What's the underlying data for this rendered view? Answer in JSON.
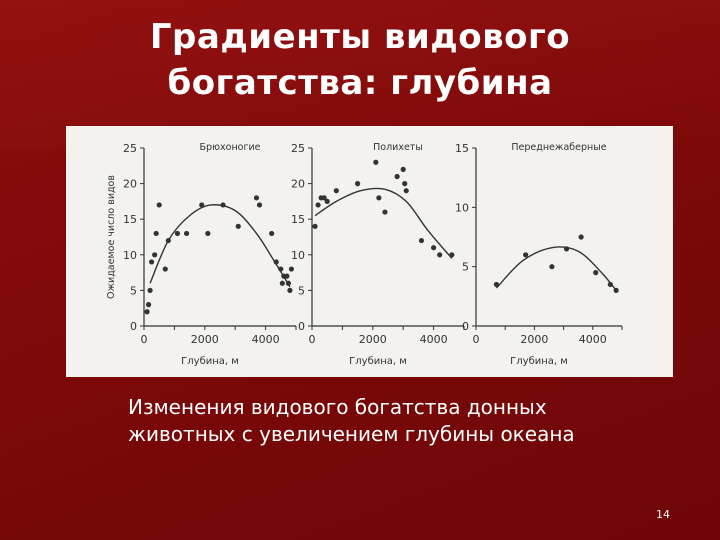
{
  "slide": {
    "title_line1": "Градиенты видового",
    "title_line2": "богатства: глубина",
    "caption_line1": "Изменения видового богатства донных",
    "caption_line2": "животных с увеличением глубины океана",
    "page_number": "14"
  },
  "colors": {
    "background": "#7a0a0a",
    "figure_bg": "#f3f2ee",
    "ink": "#333333"
  },
  "chart_data": [
    {
      "type": "scatter",
      "title": "Брюхоногие",
      "xlabel": "Глубина, м",
      "ylabel": "Ожидаемое число видов",
      "xlim": [
        0,
        5000
      ],
      "ylim": [
        0,
        25
      ],
      "xticks": [
        "0",
        "2000",
        "4000"
      ],
      "yticks": [
        "0",
        "5",
        "10",
        "15",
        "20",
        "25"
      ],
      "points": [
        [
          100,
          2
        ],
        [
          150,
          3
        ],
        [
          200,
          5
        ],
        [
          250,
          9
        ],
        [
          350,
          10
        ],
        [
          400,
          13
        ],
        [
          500,
          17
        ],
        [
          700,
          8
        ],
        [
          800,
          12
        ],
        [
          1100,
          13
        ],
        [
          1400,
          13
        ],
        [
          1900,
          17
        ],
        [
          2100,
          13
        ],
        [
          2600,
          17
        ],
        [
          3100,
          14
        ],
        [
          3700,
          18
        ],
        [
          3800,
          17
        ],
        [
          4200,
          13
        ],
        [
          4350,
          9
        ],
        [
          4500,
          8
        ],
        [
          4550,
          6
        ],
        [
          4600,
          7
        ],
        [
          4700,
          7
        ],
        [
          4750,
          6
        ],
        [
          4800,
          5
        ],
        [
          4850,
          8
        ]
      ],
      "trend": [
        [
          200,
          6
        ],
        [
          800,
          12
        ],
        [
          1500,
          15.5
        ],
        [
          2200,
          17
        ],
        [
          3000,
          16.2
        ],
        [
          3700,
          13
        ],
        [
          4300,
          9
        ],
        [
          4800,
          5.5
        ]
      ]
    },
    {
      "type": "scatter",
      "title": "Полихеты",
      "xlabel": "Глубина, м",
      "ylabel": "",
      "xlim": [
        0,
        5000
      ],
      "ylim": [
        0,
        25
      ],
      "xticks": [
        "0",
        "2000",
        "4000"
      ],
      "yticks": [
        "0",
        "5",
        "10",
        "15",
        "20",
        "25"
      ],
      "points": [
        [
          100,
          14
        ],
        [
          200,
          17
        ],
        [
          300,
          18
        ],
        [
          400,
          18
        ],
        [
          500,
          17.5
        ],
        [
          800,
          19
        ],
        [
          1500,
          20
        ],
        [
          2100,
          23
        ],
        [
          2200,
          18
        ],
        [
          2400,
          16
        ],
        [
          2800,
          21
        ],
        [
          3000,
          22
        ],
        [
          3050,
          20
        ],
        [
          3100,
          19
        ],
        [
          3600,
          12
        ],
        [
          4000,
          11
        ],
        [
          4200,
          10
        ],
        [
          4600,
          10
        ]
      ],
      "trend": [
        [
          100,
          15.5
        ],
        [
          800,
          17.5
        ],
        [
          1600,
          19
        ],
        [
          2400,
          19.2
        ],
        [
          3100,
          17.5
        ],
        [
          3800,
          13.5
        ],
        [
          4600,
          9.5
        ]
      ]
    },
    {
      "type": "scatter",
      "title": "Переднежаберные",
      "xlabel": "Глубина, м",
      "ylabel": "",
      "xlim": [
        0,
        5000
      ],
      "ylim": [
        0,
        15
      ],
      "xticks": [
        "0",
        "2000",
        "4000"
      ],
      "yticks": [
        "0",
        "5",
        "10",
        "15"
      ],
      "points": [
        [
          700,
          3.5
        ],
        [
          1700,
          6
        ],
        [
          2600,
          5
        ],
        [
          3100,
          6.5
        ],
        [
          3600,
          7.5
        ],
        [
          4100,
          4.5
        ],
        [
          4600,
          3.5
        ],
        [
          4800,
          3
        ]
      ],
      "trend": [
        [
          700,
          3.2
        ],
        [
          1600,
          5.5
        ],
        [
          2600,
          6.6
        ],
        [
          3500,
          6.3
        ],
        [
          4300,
          4.5
        ],
        [
          4800,
          3
        ]
      ]
    }
  ]
}
